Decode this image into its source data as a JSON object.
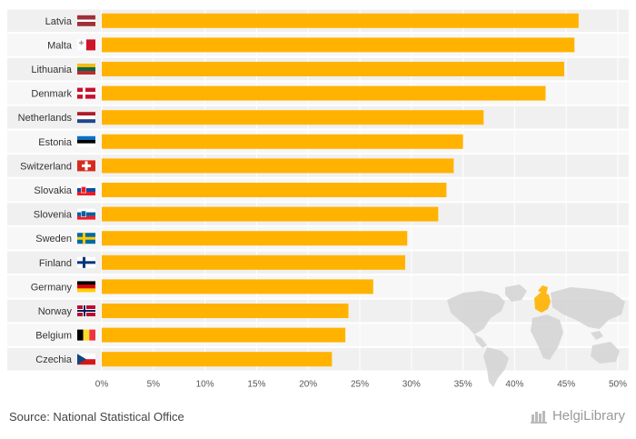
{
  "chart_data": {
    "type": "bar",
    "orientation": "horizontal",
    "categories": [
      "Latvia",
      "Malta",
      "Lithuania",
      "Denmark",
      "Netherlands",
      "Estonia",
      "Switzerland",
      "Slovakia",
      "Slovenia",
      "Sweden",
      "Finland",
      "Germany",
      "Norway",
      "Belgium",
      "Czechia"
    ],
    "values": [
      46.2,
      45.8,
      44.8,
      43.0,
      37.0,
      35.0,
      34.1,
      33.4,
      32.6,
      29.6,
      29.4,
      26.3,
      23.9,
      23.6,
      22.3
    ],
    "xlim": [
      0,
      50
    ],
    "xticks": [
      0,
      5,
      10,
      15,
      20,
      25,
      30,
      35,
      40,
      45,
      50
    ],
    "tick_suffix": "%",
    "bar_color": "#FFB300",
    "grid": true
  },
  "footer": {
    "source": "Source: National Statistical Office",
    "logo": "HelgiLibrary"
  },
  "colors": {
    "band_light": "#F0F0F0",
    "band_lighter": "#F7F7F7",
    "map_land": "#D5D5D5",
    "map_highlight": "#FFB300"
  }
}
